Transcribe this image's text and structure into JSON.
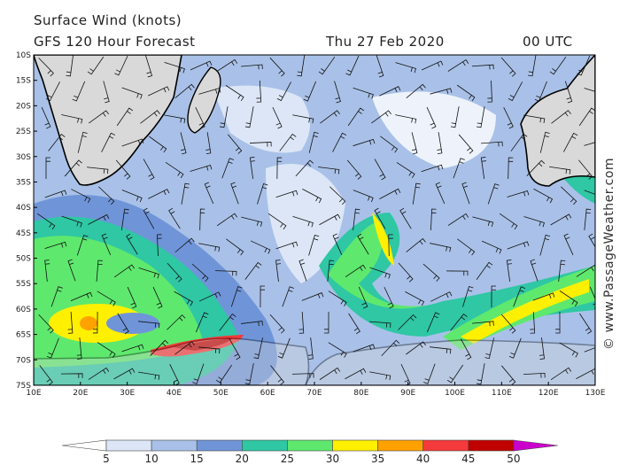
{
  "header": {
    "title": "Surface Wind (knots)",
    "model": "GFS 120 Hour Forecast",
    "date": "Thu 27 Feb 2020",
    "time": "00 UTC"
  },
  "latitude_labels": [
    "10S",
    "15S",
    "20S",
    "25S",
    "30S",
    "35S",
    "40S",
    "45S",
    "50S",
    "55S",
    "60S",
    "65S",
    "70S",
    "75S"
  ],
  "longitude_labels": [
    "10E",
    "20E",
    "30E",
    "40E",
    "50E",
    "60E",
    "70E",
    "80E",
    "90E",
    "100E",
    "110E",
    "120E",
    "130E"
  ],
  "legend": {
    "ticks": [
      5,
      10,
      15,
      20,
      25,
      30,
      35,
      40,
      45,
      50
    ],
    "colors": [
      "#ffffff",
      "#dce6f6",
      "#a9c1e8",
      "#6f95d8",
      "#2fc7a4",
      "#5fe86e",
      "#fff000",
      "#ffa200",
      "#f43a3a",
      "#c00000",
      "#cc00cc"
    ]
  },
  "copyright": "© www.PassageWeather.com"
}
